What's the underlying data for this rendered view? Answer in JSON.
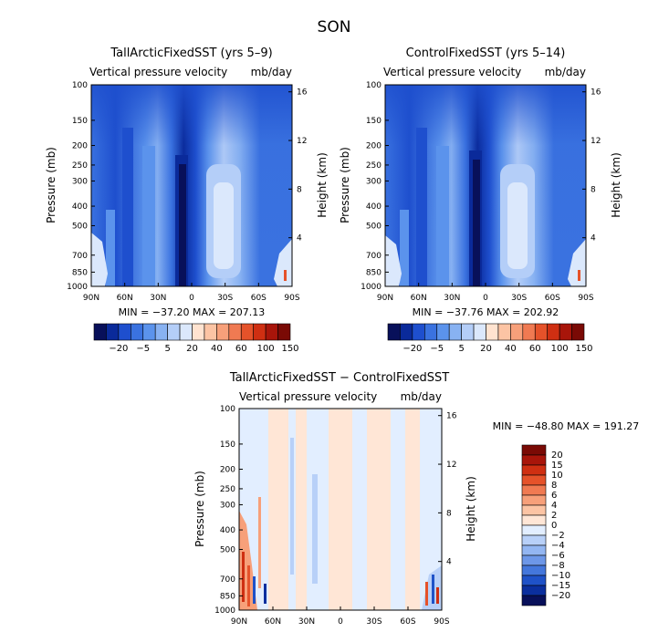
{
  "figure": {
    "title": "SON"
  },
  "chart_data": [
    {
      "type": "heatmap",
      "title": "TallArcticFixedSST (yrs 5–9)",
      "subtitle_left": "Vertical pressure velocity",
      "subtitle_right": "mb/day",
      "xlabel": "",
      "ylabel": "Pressure (mb)",
      "ylabel_right": "Height (km)",
      "x_ticks": [
        "90N",
        "60N",
        "30N",
        "0",
        "30S",
        "60S",
        "90S"
      ],
      "y_ticks": [
        "100",
        "150",
        "200",
        "250",
        "300",
        "400",
        "500",
        "700",
        "850",
        "1000"
      ],
      "y_ticks_right": [
        "16",
        "12",
        "8",
        "4"
      ],
      "stats_label": "MIN = −37.20   MAX = 207.13",
      "min": -37.2,
      "max": 207.13,
      "colorbar_labels": [
        "−20",
        "−5",
        "5",
        "20",
        "40",
        "60",
        "100",
        "150"
      ]
    },
    {
      "type": "heatmap",
      "title": "ControlFixedSST (yrs 5–14)",
      "subtitle_left": "Vertical pressure velocity",
      "subtitle_right": "mb/day",
      "xlabel": "",
      "ylabel": "Pressure (mb)",
      "ylabel_right": "Height (km)",
      "x_ticks": [
        "90N",
        "60N",
        "30N",
        "0",
        "30S",
        "60S",
        "90S"
      ],
      "y_ticks": [
        "100",
        "150",
        "200",
        "250",
        "300",
        "400",
        "500",
        "700",
        "850",
        "1000"
      ],
      "y_ticks_right": [
        "16",
        "12",
        "8",
        "4"
      ],
      "stats_label": "MIN = −37.76   MAX = 202.92",
      "min": -37.76,
      "max": 202.92,
      "colorbar_labels": [
        "−20",
        "−5",
        "5",
        "20",
        "40",
        "60",
        "100",
        "150"
      ]
    },
    {
      "type": "heatmap",
      "title": "TallArcticFixedSST − ControlFixedSST",
      "subtitle_left": "Vertical pressure velocity",
      "subtitle_right": "mb/day",
      "xlabel": "",
      "ylabel": "Pressure (mb)",
      "ylabel_right": "Height (km)",
      "x_ticks": [
        "90N",
        "60N",
        "30N",
        "0",
        "30S",
        "60S",
        "90S"
      ],
      "y_ticks": [
        "100",
        "150",
        "200",
        "250",
        "300",
        "400",
        "500",
        "700",
        "850",
        "1000"
      ],
      "y_ticks_right": [
        "16",
        "12",
        "8",
        "4"
      ],
      "stats_label": "MIN = −48.80   MAX = 191.27",
      "min": -48.8,
      "max": 191.27,
      "colorbar_labels": [
        "20",
        "15",
        "10",
        "8",
        "6",
        "4",
        "2",
        "0",
        "−2",
        "−4",
        "−6",
        "−8",
        "−10",
        "−15",
        "−20"
      ]
    }
  ],
  "colors": {
    "full_palette": [
      "#08105a",
      "#0a2a9a",
      "#1e4fce",
      "#3a72e0",
      "#5b93ec",
      "#88b2f2",
      "#b4cef8",
      "#dbe8fc",
      "#ffe3d0",
      "#fcc4a4",
      "#f7a07a",
      "#f07a52",
      "#e5522a",
      "#cf2f12",
      "#a8150a",
      "#7a0a05"
    ],
    "diff_palette": [
      "#7a0a05",
      "#a8150a",
      "#cf2f12",
      "#e5522a",
      "#f07a52",
      "#f7a07a",
      "#fcc4a4",
      "#ffe6d6",
      "#e2eeff",
      "#b8d0f8",
      "#93b6f2",
      "#6d97e8",
      "#4477dc",
      "#1f52c8",
      "#0b2f9e",
      "#08105a"
    ]
  }
}
